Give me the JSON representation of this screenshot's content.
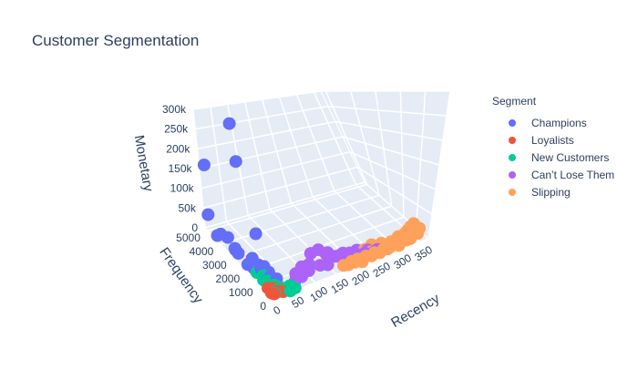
{
  "chart_data": {
    "type": "scatter3d",
    "title": "Customer Segmentation",
    "axes": {
      "x": {
        "label": "Recency",
        "range": [
          0,
          370
        ],
        "ticks": [
          "0",
          "50",
          "100",
          "150",
          "200",
          "250",
          "300",
          "350"
        ]
      },
      "y": {
        "label": "Frequency",
        "range": [
          0,
          5200
        ],
        "ticks": [
          "0",
          "1000",
          "2000",
          "3000",
          "4000",
          "5000"
        ]
      },
      "z": {
        "label": "Monetary",
        "range": [
          0,
          300000
        ],
        "ticks": [
          "0",
          "50k",
          "100k",
          "150k",
          "200k",
          "250k",
          "300k"
        ]
      }
    },
    "legend": {
      "title": "Segment",
      "position": "right"
    },
    "grid": true,
    "series": [
      {
        "name": "Champions",
        "color": "#636efa",
        "points": [
          [
            2,
            4850,
            165000
          ],
          [
            3,
            4950,
            40000
          ],
          [
            1,
            2700,
            280000
          ],
          [
            4,
            2500,
            205000
          ],
          [
            2,
            4300,
            10000
          ],
          [
            6,
            3600,
            25000
          ],
          [
            10,
            1500,
            80000
          ],
          [
            5,
            3000,
            15000
          ],
          [
            8,
            2900,
            10000
          ],
          [
            12,
            3300,
            8000
          ],
          [
            7,
            4200,
            15000
          ],
          [
            15,
            2100,
            12000
          ],
          [
            18,
            1700,
            15000
          ],
          [
            12,
            1300,
            20000
          ],
          [
            20,
            1200,
            10000
          ],
          [
            22,
            2300,
            12000
          ],
          [
            25,
            1000,
            9000
          ],
          [
            28,
            1600,
            12000
          ],
          [
            15,
            900,
            8000
          ],
          [
            30,
            1300,
            8000
          ],
          [
            10,
            1800,
            9000
          ],
          [
            33,
            800,
            7000
          ],
          [
            8,
            2200,
            6000
          ],
          [
            24,
            600,
            5000
          ]
        ]
      },
      {
        "name": "Loyalists",
        "color": "#ef553b",
        "points": [
          [
            6,
            600,
            3000
          ],
          [
            10,
            400,
            2500
          ],
          [
            15,
            300,
            2000
          ],
          [
            20,
            350,
            2200
          ],
          [
            8,
            200,
            1500
          ],
          [
            12,
            500,
            2800
          ],
          [
            18,
            250,
            1800
          ],
          [
            25,
            200,
            1400
          ],
          [
            5,
            300,
            1600
          ],
          [
            28,
            150,
            1200
          ],
          [
            22,
            450,
            2400
          ],
          [
            30,
            300,
            1600
          ]
        ]
      },
      {
        "name": "New Customers",
        "color": "#00cc96",
        "points": [
          [
            5,
            1400,
            12000
          ],
          [
            8,
            1000,
            7000
          ],
          [
            12,
            700,
            5000
          ],
          [
            15,
            900,
            6000
          ],
          [
            18,
            500,
            4000
          ],
          [
            20,
            300,
            3000
          ],
          [
            10,
            200,
            2000
          ],
          [
            25,
            250,
            2500
          ],
          [
            30,
            200,
            2000
          ],
          [
            35,
            150,
            1500
          ],
          [
            40,
            200,
            1800
          ],
          [
            45,
            100,
            1200
          ],
          [
            50,
            150,
            1500
          ],
          [
            55,
            100,
            1000
          ],
          [
            22,
            600,
            4000
          ],
          [
            28,
            400,
            3000
          ],
          [
            32,
            300,
            2500
          ],
          [
            38,
            250,
            2000
          ],
          [
            14,
            1200,
            9000
          ],
          [
            6,
            300,
            2000
          ],
          [
            42,
            50,
            800
          ],
          [
            48,
            300,
            2200
          ]
        ]
      },
      {
        "name": "Can’t Lose Them",
        "color": "#ab63fa",
        "points": [
          [
            120,
            1000,
            25000
          ],
          [
            135,
            900,
            30000
          ],
          [
            150,
            800,
            20000
          ],
          [
            160,
            1000,
            15000
          ],
          [
            170,
            700,
            12000
          ],
          [
            180,
            600,
            15000
          ],
          [
            190,
            800,
            10000
          ],
          [
            200,
            600,
            12000
          ],
          [
            210,
            500,
            10000
          ],
          [
            220,
            700,
            9000
          ],
          [
            100,
            500,
            10000
          ],
          [
            110,
            800,
            12000
          ],
          [
            90,
            600,
            8000
          ],
          [
            80,
            400,
            7000
          ],
          [
            70,
            500,
            6000
          ],
          [
            60,
            300,
            5000
          ],
          [
            130,
            600,
            9000
          ],
          [
            145,
            500,
            8000
          ],
          [
            230,
            400,
            7000
          ],
          [
            240,
            500,
            8000
          ],
          [
            250,
            300,
            6000
          ],
          [
            260,
            400,
            5000
          ],
          [
            75,
            700,
            7000
          ],
          [
            95,
            900,
            9000
          ]
        ]
      },
      {
        "name": "Slipping",
        "color": "#ffa15a",
        "points": [
          [
            200,
            200,
            3000
          ],
          [
            210,
            300,
            4000
          ],
          [
            220,
            250,
            3000
          ],
          [
            230,
            300,
            3500
          ],
          [
            240,
            200,
            3000
          ],
          [
            250,
            300,
            4000
          ],
          [
            260,
            200,
            3000
          ],
          [
            270,
            300,
            3500
          ],
          [
            280,
            250,
            3000
          ],
          [
            290,
            300,
            4000
          ],
          [
            300,
            350,
            5000
          ],
          [
            310,
            400,
            6000
          ],
          [
            320,
            500,
            8000
          ],
          [
            330,
            600,
            10000
          ],
          [
            340,
            700,
            12000
          ],
          [
            350,
            800,
            14000
          ],
          [
            360,
            900,
            15000
          ],
          [
            345,
            500,
            8000
          ],
          [
            325,
            300,
            5000
          ],
          [
            305,
            200,
            3000
          ],
          [
            285,
            400,
            5000
          ],
          [
            265,
            500,
            6000
          ],
          [
            245,
            400,
            5000
          ],
          [
            225,
            500,
            6000
          ],
          [
            215,
            100,
            2000
          ],
          [
            195,
            300,
            4000
          ],
          [
            185,
            200,
            3000
          ],
          [
            175,
            250,
            3500
          ],
          [
            355,
            400,
            7000
          ],
          [
            335,
            300,
            5000
          ],
          [
            315,
            600,
            9000
          ],
          [
            295,
            500,
            7000
          ],
          [
            275,
            600,
            8000
          ],
          [
            255,
            700,
            9000
          ],
          [
            235,
            600,
            8000
          ],
          [
            365,
            600,
            10000
          ]
        ]
      }
    ]
  }
}
